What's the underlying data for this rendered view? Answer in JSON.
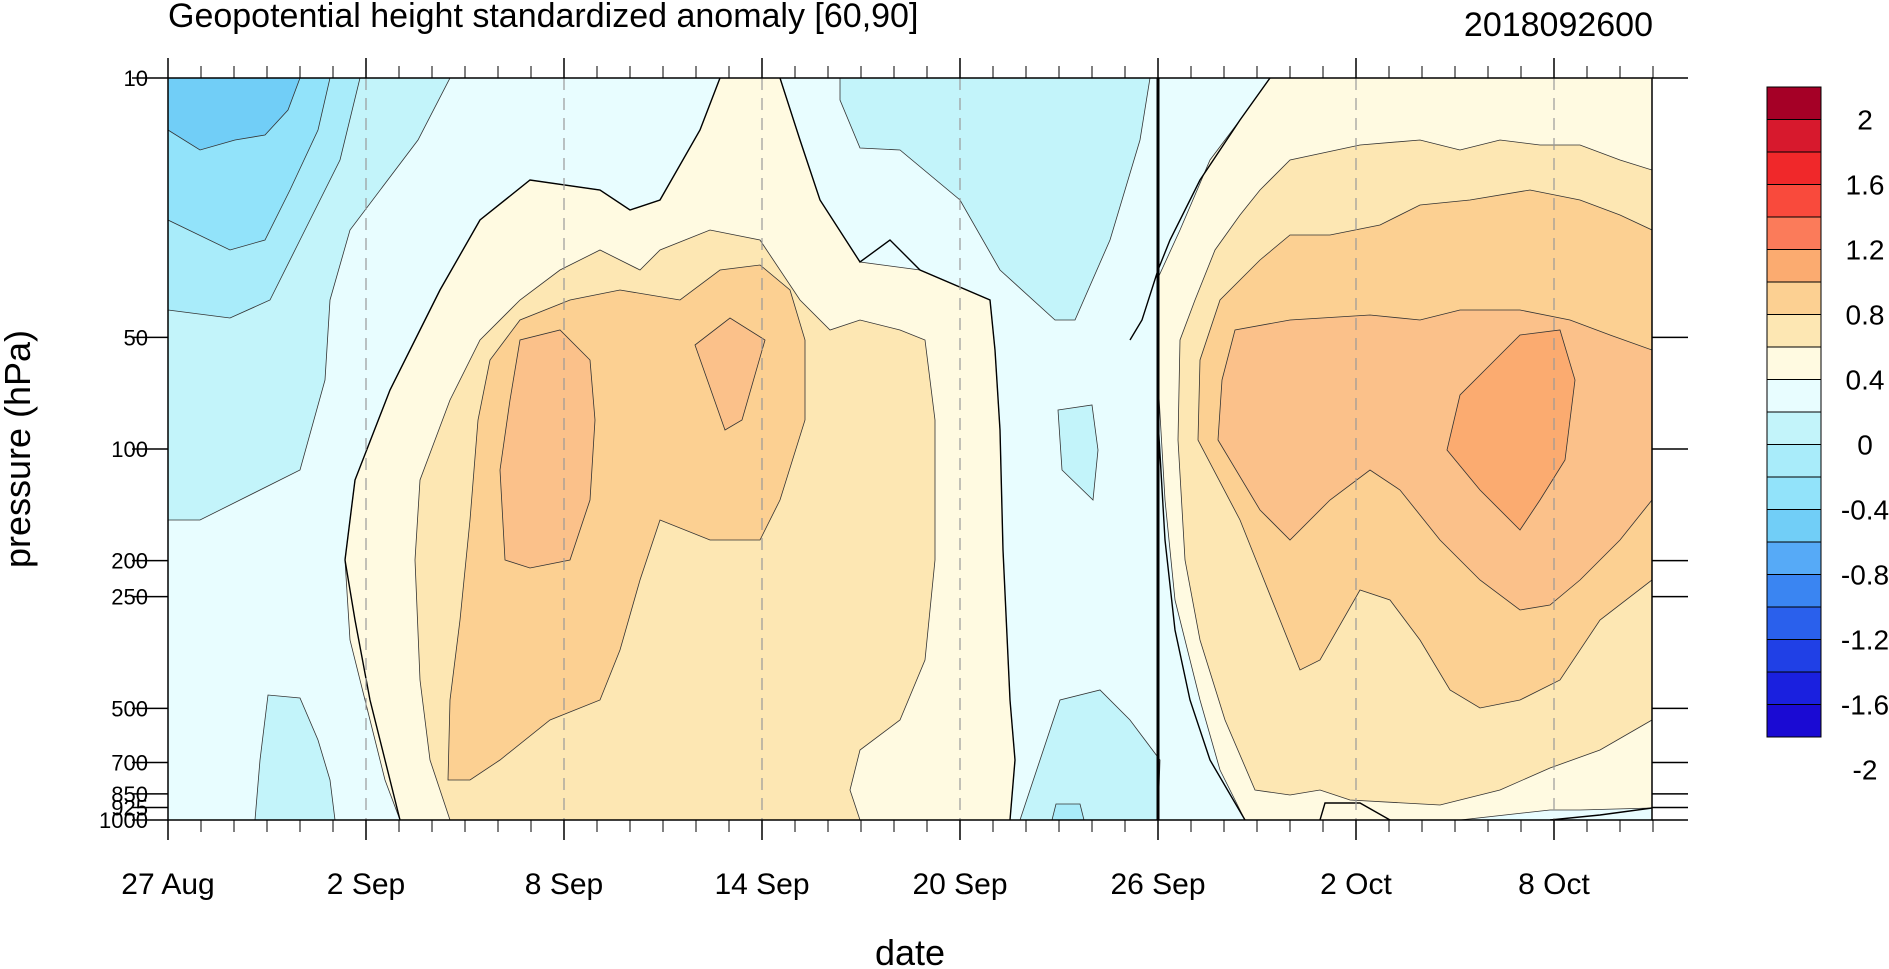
{
  "chart_data": {
    "type": "heatmap",
    "title": "Geopotential height standardized anomaly [60,90]",
    "date_label": "2018092600",
    "xlabel": "date",
    "ylabel": "pressure (hPa)",
    "x_ticks": [
      "27 Aug",
      "2 Sep",
      "8 Sep",
      "14 Sep",
      "20 Sep",
      "26 Sep",
      "2 Oct",
      "8 Oct"
    ],
    "y_ticks": [
      "10",
      "50",
      "100",
      "200",
      "250",
      "500",
      "700",
      "850",
      "925",
      "1000"
    ],
    "y_scale": "log",
    "ylim": [
      1000,
      10
    ],
    "forecast_start": "26 Sep",
    "colorbar_labels": [
      "2",
      "1.6",
      "1.2",
      "0.8",
      "0.4",
      "0",
      "-0.4",
      "-0.8",
      "-1.2",
      "-1.6",
      "-2"
    ],
    "colorbar_colors": [
      "#a50026",
      "#d7192d",
      "#f0282a",
      "#f94a3c",
      "#fb7b5a",
      "#fbab70",
      "#fcd092",
      "#fde7b3",
      "#fffae1",
      "#e8fdff",
      "#c3f4fa",
      "#a9ecfa",
      "#92e3fa",
      "#71cef7",
      "#56aaf7",
      "#3a85f2",
      "#2a60ec",
      "#2040e6",
      "#1a20df",
      "#1a0ad3"
    ],
    "contour_levels": [
      -0.8,
      -0.6,
      -0.4,
      -0.2,
      0,
      0.2,
      0.4,
      0.6,
      0.8
    ],
    "series_approx": {
      "levels_hPa": [
        10,
        20,
        30,
        50,
        100,
        150,
        200,
        300,
        500,
        700,
        1000
      ],
      "dates": [
        "27 Aug",
        "2 Sep",
        "5 Sep",
        "8 Sep",
        "11 Sep",
        "14 Sep",
        "17 Sep",
        "20 Sep",
        "23 Sep",
        "26 Sep",
        "29 Sep",
        "2 Oct",
        "5 Oct",
        "8 Oct",
        "11 Oct"
      ]
    }
  }
}
